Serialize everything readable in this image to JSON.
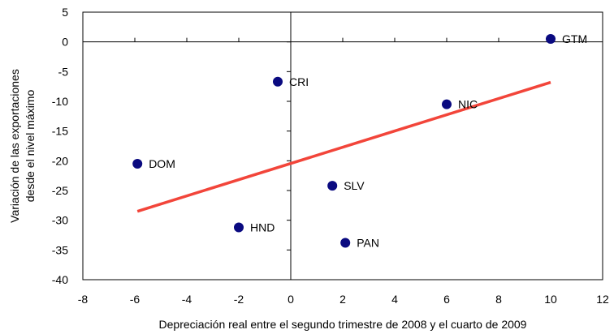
{
  "chart_data": {
    "type": "scatter",
    "title": "",
    "xlabel": "Depreciación real entre el segundo trimestre de 2008 y el cuarto de 2009",
    "ylabel_lines": [
      "Variación de las exportaciones",
      "desde el nivel máximo"
    ],
    "xlim": [
      -8,
      12
    ],
    "ylim": [
      -40,
      5
    ],
    "x_ticks": [
      -8,
      -6,
      -4,
      -2,
      0,
      2,
      4,
      6,
      8,
      10,
      12
    ],
    "y_ticks": [
      5,
      0,
      -5,
      -10,
      -15,
      -20,
      -25,
      -30,
      -35,
      -40
    ],
    "grid": false,
    "legend": "none",
    "marker_color": "#0a0a80",
    "trend_color": "#f2453a",
    "points": [
      {
        "label": "GTM",
        "x": 10.0,
        "y": 0.5
      },
      {
        "label": "CRI",
        "x": -0.5,
        "y": -6.7
      },
      {
        "label": "NIC",
        "x": 6.0,
        "y": -10.5
      },
      {
        "label": "DOM",
        "x": -5.9,
        "y": -20.5
      },
      {
        "label": "SLV",
        "x": 1.6,
        "y": -24.2
      },
      {
        "label": "HND",
        "x": -2.0,
        "y": -31.2
      },
      {
        "label": "PAN",
        "x": 2.1,
        "y": -33.8
      }
    ],
    "trendline": {
      "x": [
        -5.9,
        10.0
      ],
      "y": [
        -28.5,
        -6.8
      ]
    }
  }
}
